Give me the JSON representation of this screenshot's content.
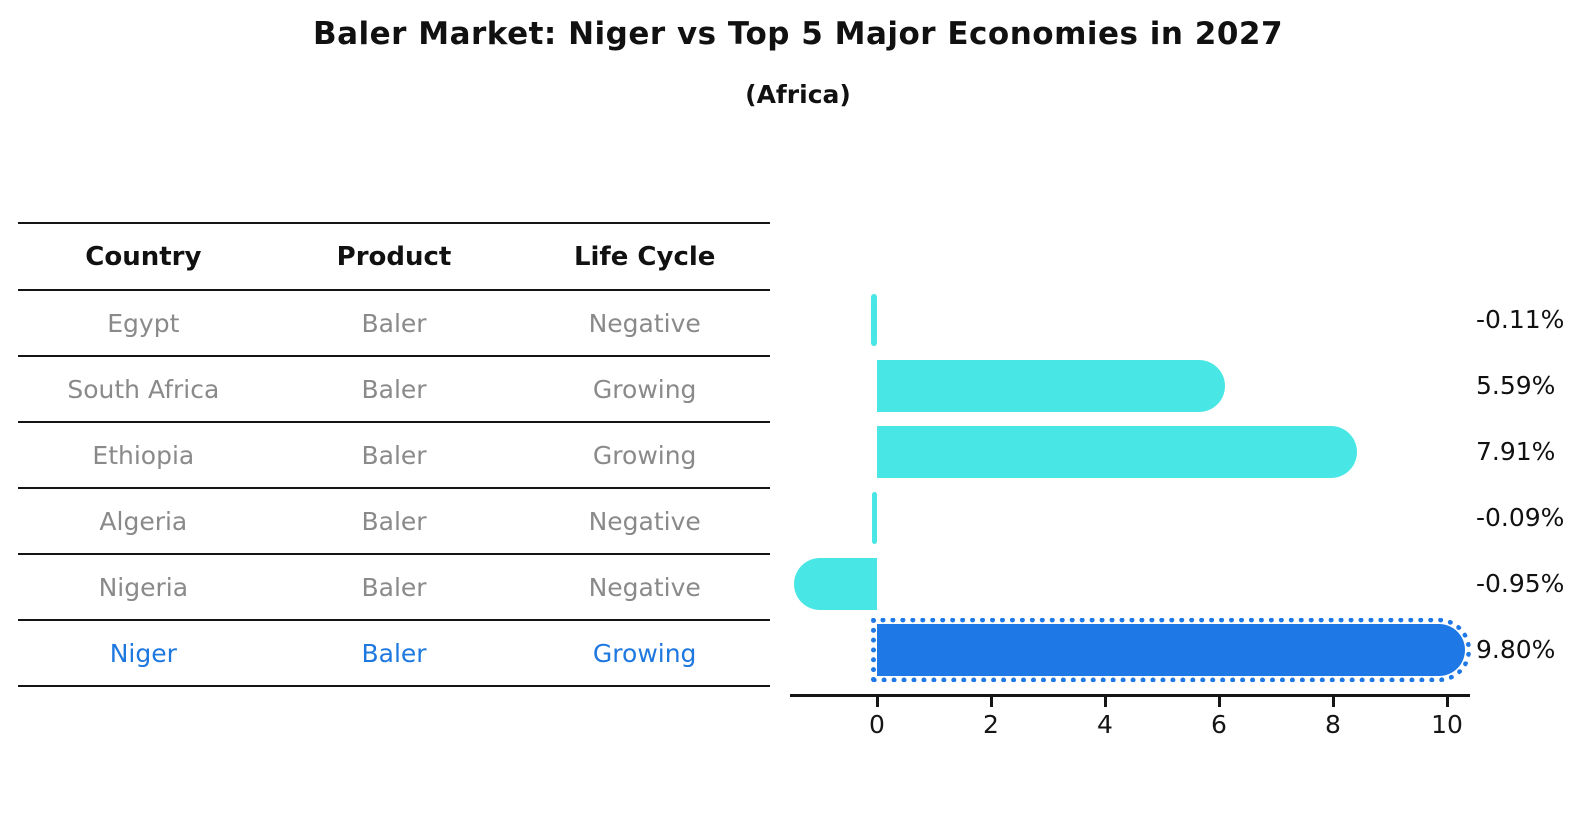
{
  "title": "Baler Market: Niger vs Top 5 Major Economies in 2027",
  "subtitle": "(Africa)",
  "table": {
    "headers": [
      "Country",
      "Product",
      "Life Cycle"
    ],
    "rows": [
      {
        "country": "Egypt",
        "product": "Baler",
        "life_cycle": "Negative",
        "highlight": false
      },
      {
        "country": "South Africa",
        "product": "Baler",
        "life_cycle": "Growing",
        "highlight": false
      },
      {
        "country": "Ethiopia",
        "product": "Baler",
        "life_cycle": "Growing",
        "highlight": false
      },
      {
        "country": "Algeria",
        "product": "Baler",
        "life_cycle": "Negative",
        "highlight": false
      },
      {
        "country": "Nigeria",
        "product": "Baler",
        "life_cycle": "Negative",
        "highlight": false
      },
      {
        "country": "Niger",
        "product": "Baler",
        "life_cycle": "Growing",
        "highlight": true
      }
    ]
  },
  "chart_data": {
    "type": "bar",
    "orientation": "horizontal",
    "categories": [
      "Egypt",
      "South Africa",
      "Ethiopia",
      "Algeria",
      "Nigeria",
      "Niger"
    ],
    "values": [
      -0.11,
      5.59,
      7.91,
      -0.09,
      -0.95,
      9.8
    ],
    "value_labels": [
      "-0.11%",
      "5.59%",
      "7.91%",
      "-0.09%",
      "-0.95%",
      "9.80%"
    ],
    "xticks": [
      "0",
      "2",
      "4",
      "6",
      "8",
      "10"
    ],
    "xtick_values": [
      0,
      2,
      4,
      6,
      8,
      10
    ],
    "xlim": [
      -1.55,
      10.45
    ],
    "title": "Baler Market: Niger vs Top 5 Major Economies in 2027",
    "subtitle": "(Africa)",
    "xlabel": "",
    "ylabel": "",
    "grid": false,
    "legend": false,
    "highlight_index": 5,
    "highlight_label": "Niger"
  },
  "colors": {
    "bar_color": "#48e6e4",
    "highlight_bar_color": "#1e78e6",
    "highlight_text_color": "#1e78e0",
    "row_text_color": "#8a8a8a",
    "header_text_color": "#111111",
    "line_color": "#151515"
  }
}
